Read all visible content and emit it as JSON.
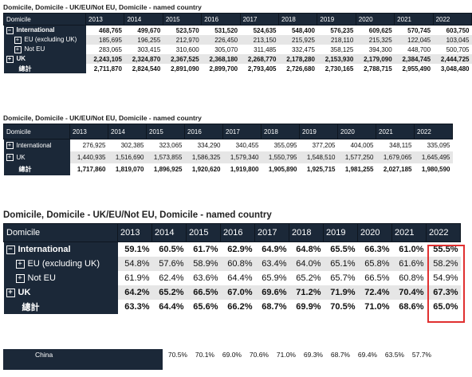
{
  "table1": {
    "title": "Domicile, Domicile - UK/EU/Not EU, Domicile - named country",
    "header": "Domicile",
    "years": [
      "2013",
      "2014",
      "2015",
      "2016",
      "2017",
      "2018",
      "2019",
      "2020",
      "2021",
      "2022"
    ],
    "rows": [
      {
        "label": "International",
        "box": "⊟",
        "values": [
          "468,765",
          "499,670",
          "523,570",
          "531,520",
          "524,635",
          "548,400",
          "576,235",
          "609,625",
          "570,745",
          "603,750"
        ]
      },
      {
        "label": "EU (excluding UK)",
        "box": "⊞",
        "values": [
          "185,695",
          "196,255",
          "212,970",
          "226,450",
          "213,150",
          "215,925",
          "218,110",
          "215,325",
          "122,045",
          "103,045"
        ]
      },
      {
        "label": "Not EU",
        "box": "⊞",
        "values": [
          "283,065",
          "303,415",
          "310,600",
          "305,070",
          "311,485",
          "332,475",
          "358,125",
          "394,300",
          "448,700",
          "500,705"
        ]
      },
      {
        "label": "UK",
        "box": "⊞",
        "values": [
          "2,243,105",
          "2,324,870",
          "2,367,525",
          "2,368,180",
          "2,268,770",
          "2,178,280",
          "2,153,930",
          "2,179,090",
          "2,384,745",
          "2,444,725"
        ]
      },
      {
        "label": "總計",
        "box": "",
        "values": [
          "2,711,870",
          "2,824,540",
          "2,891,090",
          "2,899,700",
          "2,793,405",
          "2,726,680",
          "2,730,165",
          "2,788,715",
          "2,955,490",
          "3,048,480"
        ]
      }
    ]
  },
  "table2": {
    "title": "Domicile, Domicile - UK/EU/Not EU, Domicile - named country",
    "header": "Domicile",
    "years": [
      "2013",
      "2014",
      "2015",
      "2016",
      "2017",
      "2018",
      "2019",
      "2020",
      "2021",
      "2022"
    ],
    "rows": [
      {
        "label": "International",
        "box": "⊞",
        "values": [
          "276,925",
          "302,385",
          "323,065",
          "334,290",
          "340,455",
          "355,095",
          "377,205",
          "404,005",
          "348,115",
          "335,095"
        ]
      },
      {
        "label": "UK",
        "box": "⊞",
        "values": [
          "1,440,935",
          "1,516,690",
          "1,573,855",
          "1,586,325",
          "1,579,340",
          "1,550,795",
          "1,548,510",
          "1,577,250",
          "1,679,065",
          "1,645,495"
        ]
      },
      {
        "label": "總計",
        "box": "",
        "values": [
          "1,717,860",
          "1,819,070",
          "1,896,925",
          "1,920,620",
          "1,919,800",
          "1,905,890",
          "1,925,715",
          "1,981,255",
          "2,027,185",
          "1,980,590"
        ]
      }
    ]
  },
  "table3": {
    "title": "Domicile, Domicile - UK/EU/Not EU, Domicile - named country",
    "header": "Domicile",
    "years": [
      "2013",
      "2014",
      "2015",
      "2016",
      "2017",
      "2018",
      "2019",
      "2020",
      "2021",
      "2022"
    ],
    "rows": [
      {
        "label": "International",
        "box": "⊟",
        "values": [
          "59.1%",
          "60.5%",
          "61.7%",
          "62.9%",
          "64.9%",
          "64.8%",
          "65.5%",
          "66.3%",
          "61.0%",
          "55.5%"
        ]
      },
      {
        "label": "EU (excluding UK)",
        "box": "⊞",
        "values": [
          "54.8%",
          "57.6%",
          "58.9%",
          "60.8%",
          "63.4%",
          "64.0%",
          "65.1%",
          "65.8%",
          "61.6%",
          "58.2%"
        ]
      },
      {
        "label": "Not EU",
        "box": "⊞",
        "values": [
          "61.9%",
          "62.4%",
          "63.6%",
          "64.4%",
          "65.9%",
          "65.2%",
          "65.7%",
          "66.5%",
          "60.8%",
          "54.9%"
        ]
      },
      {
        "label": "UK",
        "box": "⊞",
        "values": [
          "64.2%",
          "65.2%",
          "66.5%",
          "67.0%",
          "69.6%",
          "71.2%",
          "71.9%",
          "72.4%",
          "70.4%",
          "67.3%"
        ]
      },
      {
        "label": "總計",
        "box": "",
        "values": [
          "63.3%",
          "64.4%",
          "65.6%",
          "66.2%",
          "68.7%",
          "69.9%",
          "70.5%",
          "71.0%",
          "68.6%",
          "65.0%"
        ]
      }
    ]
  },
  "table4": {
    "rows": [
      {
        "label": "China",
        "values": [
          "70.5%",
          "70.1%",
          "69.0%",
          "70.6%",
          "71.0%",
          "69.3%",
          "68.7%",
          "69.4%",
          "63.5%",
          "57.7%"
        ]
      }
    ]
  },
  "colors": {
    "header_bg": "#1b2838",
    "highlight": "#e03030",
    "alt_row": "#e6e6e6"
  }
}
